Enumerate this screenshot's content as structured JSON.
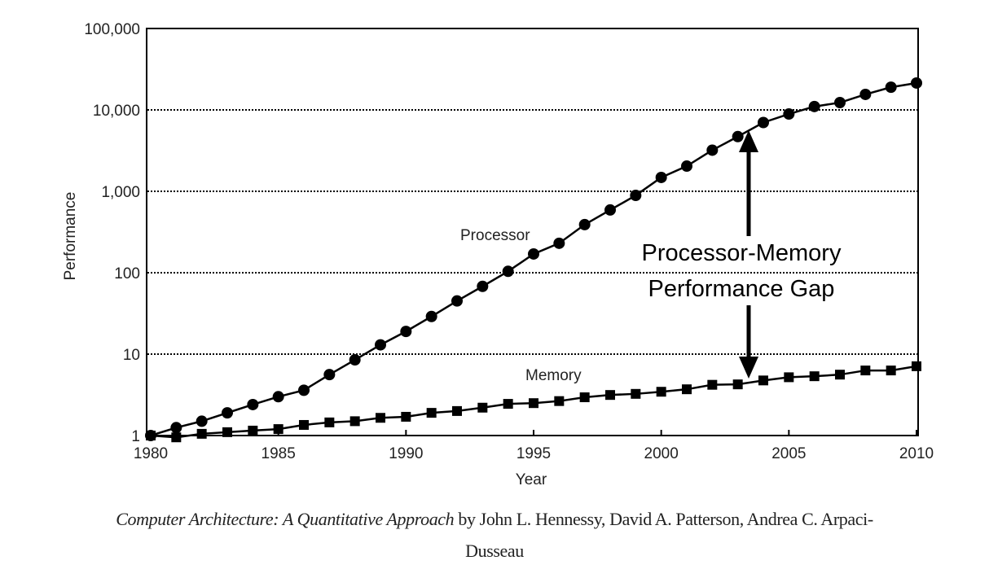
{
  "chart_data": {
    "type": "line",
    "title": "",
    "xlabel": "Year",
    "ylabel": "Performance",
    "y_scale": "log",
    "xlim": [
      1980,
      2010
    ],
    "ylim": [
      1,
      100000
    ],
    "x_ticks": [
      "1980",
      "1985",
      "1990",
      "1995",
      "2000",
      "2005",
      "2010"
    ],
    "y_ticks": [
      "1",
      "10",
      "100",
      "1,000",
      "10,000",
      "100,000"
    ],
    "grid": "horizontal dotted",
    "x": [
      1980,
      1981,
      1982,
      1983,
      1984,
      1985,
      1986,
      1987,
      1988,
      1989,
      1990,
      1991,
      1992,
      1993,
      1994,
      1995,
      1996,
      1997,
      1998,
      1999,
      2000,
      2001,
      2002,
      2003,
      2004,
      2005,
      2006,
      2007,
      2008,
      2009,
      2010
    ],
    "series": [
      {
        "name": "Processor",
        "marker": "circle",
        "values": [
          1,
          1.25,
          1.5,
          1.9,
          2.4,
          3,
          3.6,
          5.6,
          8.5,
          13,
          19,
          29,
          45,
          68,
          104,
          170,
          230,
          390,
          590,
          890,
          1480,
          2040,
          3200,
          4700,
          7000,
          8900,
          11000,
          12300,
          15500,
          19000,
          21400
        ]
      },
      {
        "name": "Memory",
        "marker": "square",
        "values": [
          1,
          0.95,
          1.05,
          1.1,
          1.15,
          1.2,
          1.35,
          1.45,
          1.5,
          1.65,
          1.7,
          1.9,
          2.0,
          2.2,
          2.45,
          2.5,
          2.65,
          2.95,
          3.15,
          3.25,
          3.45,
          3.7,
          4.2,
          4.25,
          4.75,
          5.2,
          5.35,
          5.6,
          6.3,
          6.3,
          7.1
        ]
      }
    ],
    "annotations": [
      "Processor-Memory",
      "Performance Gap"
    ],
    "color": "#000000"
  },
  "caption": {
    "title": "Computer Architecture: A Quantitative Approach",
    "line1_authors": " by John L. Hennessy, David A. Patterson, Andrea C. Arpaci-",
    "line2": "Dusseau"
  }
}
